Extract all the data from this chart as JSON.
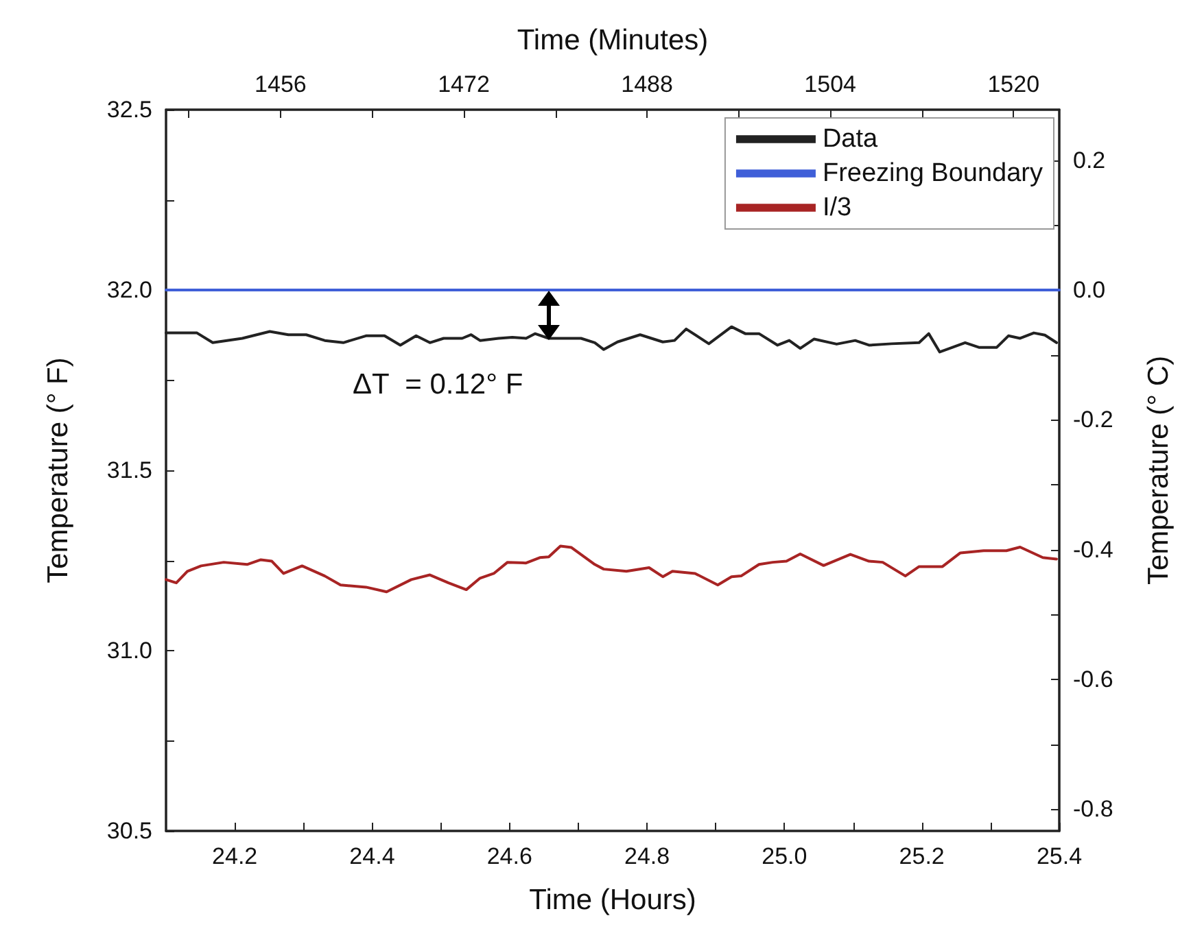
{
  "chart_data": {
    "type": "line",
    "xlabel": "Time (Hours)",
    "x2label": "Time (Minutes)",
    "ylabel": "Temperature (° F)",
    "y2label": "Temperature (° C)",
    "xlim": [
      24.1,
      25.4
    ],
    "xticks": [
      24.2,
      {
        "value": 24.3,
        "label": null
      },
      24.4,
      {
        "value": 24.5,
        "label": null
      },
      24.6,
      {
        "value": 24.7,
        "label": null
      },
      24.8,
      {
        "value": 24.9,
        "label": null
      },
      {
        "value": 25.0,
        "label": "25.0"
      },
      {
        "value": 25.1,
        "label": null
      },
      25.2,
      {
        "value": 25.3,
        "label": null
      },
      25.4
    ],
    "x2lim": [
      1446,
      1524
    ],
    "x2ticks": [
      {
        "value": 1448,
        "label": null
      },
      1456,
      {
        "value": 1464,
        "label": null
      },
      1472,
      {
        "value": 1480,
        "label": null
      },
      1488,
      {
        "value": 1496,
        "label": null
      },
      1504,
      {
        "value": 1512,
        "label": null
      },
      1520
    ],
    "ylim": [
      30.5,
      32.5
    ],
    "yticks": [
      30.5,
      {
        "value": 30.75,
        "label": null
      },
      {
        "value": 31.0,
        "label": "31.0"
      },
      {
        "value": 31.25,
        "label": null
      },
      31.5,
      {
        "value": 31.75,
        "label": null
      },
      {
        "value": 32.0,
        "label": "32.0"
      },
      {
        "value": 32.25,
        "label": null
      },
      32.5
    ],
    "y2lim": [
      -0.8333,
      0.2778
    ],
    "y2ticks": [
      -0.8,
      {
        "value": -0.7,
        "label": null
      },
      -0.6,
      {
        "value": -0.5,
        "label": null
      },
      -0.4,
      {
        "value": -0.3,
        "label": null
      },
      -0.2,
      {
        "value": -0.1,
        "label": null
      },
      {
        "value": 0,
        "label": "0.0"
      },
      {
        "value": 0.1,
        "label": null
      },
      0.2
    ],
    "grid": false,
    "legend": "top right",
    "marker": "none",
    "line_style": "solid",
    "annotations": [
      "ΔT  = 0.12° F"
    ],
    "series": [
      {
        "name": "Data",
        "color": "#222222",
        "x": [
          24.1,
          24.145,
          24.168,
          24.211,
          24.251,
          24.278,
          24.304,
          24.331,
          24.358,
          24.391,
          24.418,
          24.441,
          24.464,
          24.484,
          24.504,
          24.531,
          24.544,
          24.557,
          24.584,
          24.604,
          24.624,
          24.637,
          24.657,
          24.677,
          24.704,
          24.724,
          24.737,
          24.757,
          24.79,
          24.823,
          24.84,
          24.857,
          24.89,
          24.923,
          24.943,
          24.963,
          24.99,
          25.007,
          25.023,
          25.043,
          25.076,
          25.103,
          25.123,
          25.156,
          25.196,
          25.21,
          25.226,
          25.263,
          25.283,
          25.309,
          25.326,
          25.343,
          25.363,
          25.379,
          25.396
        ],
        "values": [
          31.881,
          31.881,
          31.854,
          31.866,
          31.885,
          31.876,
          31.876,
          31.86,
          31.854,
          31.873,
          31.873,
          31.847,
          31.873,
          31.854,
          31.866,
          31.866,
          31.876,
          31.86,
          31.866,
          31.869,
          31.866,
          31.879,
          31.866,
          31.866,
          31.866,
          31.854,
          31.835,
          31.856,
          31.876,
          31.856,
          31.86,
          31.892,
          31.851,
          31.898,
          31.879,
          31.879,
          31.847,
          31.86,
          31.838,
          31.864,
          31.85,
          31.86,
          31.847,
          31.851,
          31.854,
          31.879,
          31.828,
          31.854,
          31.841,
          31.841,
          31.873,
          31.866,
          31.881,
          31.875,
          31.854
        ]
      },
      {
        "name": "Freezing Boundary",
        "color": "#3f5fd8",
        "x": [
          24.1,
          25.4
        ],
        "values": [
          32.0,
          32.0
        ]
      },
      {
        "name": "I/3",
        "color": "#a82424",
        "x": [
          24.1,
          24.115,
          24.131,
          24.151,
          24.184,
          24.218,
          24.238,
          24.254,
          24.271,
          24.298,
          24.331,
          24.354,
          24.391,
          24.421,
          24.457,
          24.484,
          24.511,
          24.537,
          24.557,
          24.577,
          24.597,
          24.624,
          24.644,
          24.657,
          24.674,
          24.69,
          24.724,
          24.737,
          24.77,
          24.803,
          24.823,
          24.837,
          24.87,
          24.903,
          24.923,
          24.937,
          24.963,
          24.983,
          25.003,
          25.023,
          25.057,
          25.096,
          25.123,
          25.143,
          25.176,
          25.196,
          25.23,
          25.256,
          25.29,
          25.323,
          25.343,
          25.376,
          25.396
        ],
        "values": [
          31.197,
          31.188,
          31.22,
          31.235,
          31.245,
          31.239,
          31.252,
          31.248,
          31.214,
          31.235,
          31.207,
          31.182,
          31.176,
          31.163,
          31.197,
          31.21,
          31.188,
          31.169,
          31.201,
          31.214,
          31.245,
          31.243,
          31.258,
          31.26,
          31.29,
          31.286,
          31.239,
          31.226,
          31.22,
          31.23,
          31.205,
          31.22,
          31.214,
          31.182,
          31.205,
          31.207,
          31.239,
          31.245,
          31.248,
          31.268,
          31.236,
          31.267,
          31.248,
          31.245,
          31.207,
          31.233,
          31.233,
          31.271,
          31.277,
          31.277,
          31.287,
          31.258,
          31.254
        ]
      }
    ]
  }
}
